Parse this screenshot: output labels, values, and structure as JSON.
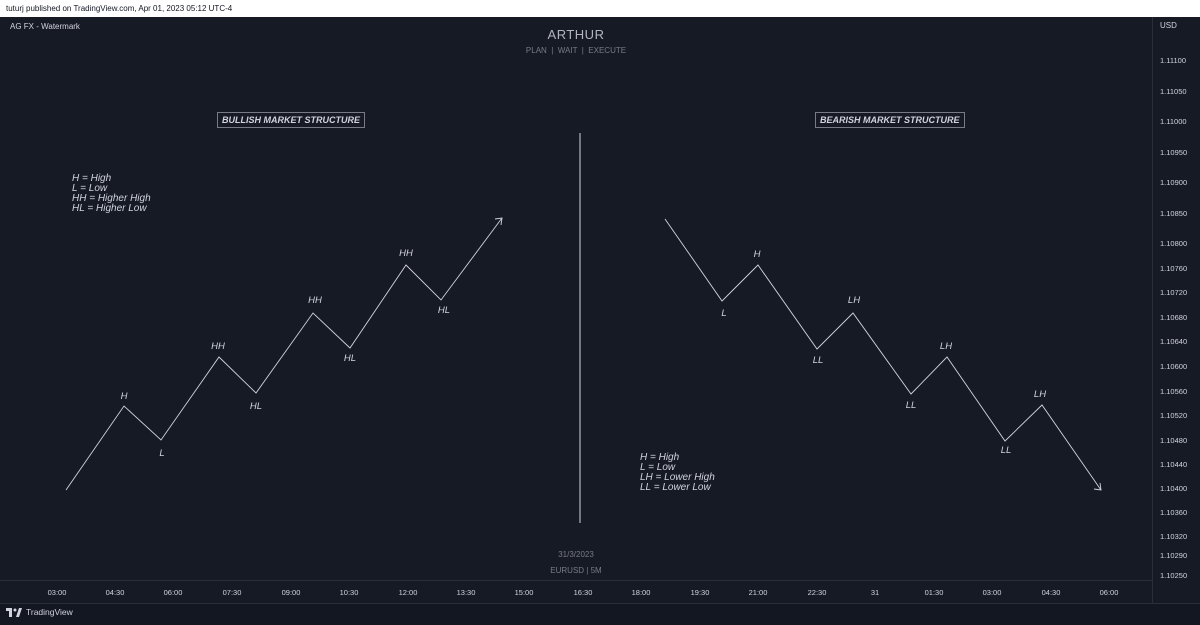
{
  "topbar": {
    "text": "tuturj published on TradingView.com, Apr 01, 2023 05:12 UTC-4"
  },
  "chart": {
    "symbol_label": "AG FX - Watermark",
    "currency": "USD",
    "watermark_title": "ARTHUR",
    "watermark_subtitle": "PLAN  |  WAIT  |  EXECUTE",
    "watermark_date": "31/3/2023",
    "watermark_symbol": "EURUSD | 5M"
  },
  "bullish": {
    "title": "BULLISH MARKET STRUCTURE",
    "legend": [
      "H = High",
      "L = Low",
      "HH = Higher High",
      "HL = Higher Low"
    ],
    "points": [
      {
        "label": "H"
      },
      {
        "label": "L"
      },
      {
        "label": "HH"
      },
      {
        "label": "HL"
      },
      {
        "label": "HH"
      },
      {
        "label": "HL"
      },
      {
        "label": "HH"
      },
      {
        "label": "HL"
      }
    ]
  },
  "bearish": {
    "title": "BEARISH MARKET STRUCTURE",
    "legend": [
      "H = High",
      "L = Low",
      "LH = Lower High",
      "LL = Lower Low"
    ],
    "points": [
      {
        "label": "L"
      },
      {
        "label": "H"
      },
      {
        "label": "LL"
      },
      {
        "label": "LH"
      },
      {
        "label": "LL"
      },
      {
        "label": "LH"
      },
      {
        "label": "LL"
      },
      {
        "label": "LH"
      }
    ]
  },
  "price_scale": [
    "1.11100",
    "1.11050",
    "1.11000",
    "1.10950",
    "1.10900",
    "1.10850",
    "1.10800",
    "1.10760",
    "1.10720",
    "1.10680",
    "1.10640",
    "1.10600",
    "1.10560",
    "1.10520",
    "1.10480",
    "1.10440",
    "1.10400",
    "1.10360",
    "1.10320",
    "1.10290",
    "1.10250"
  ],
  "time_scale": [
    "03:00",
    "04:30",
    "06:00",
    "07:30",
    "09:00",
    "10:30",
    "12:00",
    "13:30",
    "15:00",
    "16:30",
    "18:00",
    "19:30",
    "21:00",
    "22:30",
    "31",
    "01:30",
    "03:00",
    "04:30",
    "06:00"
  ],
  "footer": {
    "brand": "TradingView"
  },
  "colors": {
    "background": "#131722",
    "line": "#d1d4dc",
    "text": "#d1d4dc",
    "muted": "#787b86"
  }
}
